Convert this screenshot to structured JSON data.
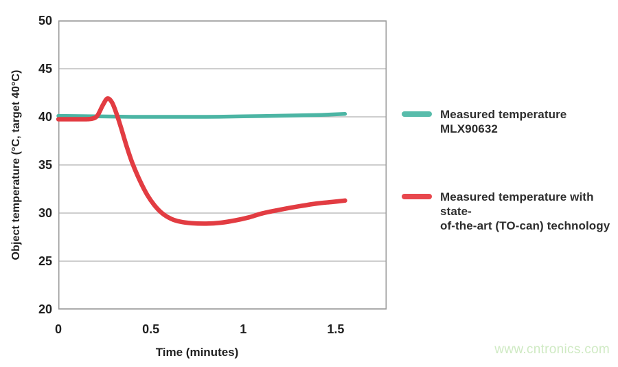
{
  "chart_data": {
    "type": "line",
    "title": "",
    "xlabel": "Time (minutes)",
    "ylabel": "Object temperature (°C, target 40°C)",
    "xlim": [
      0,
      1.775
    ],
    "ylim": [
      20,
      50
    ],
    "xticks": [
      0,
      0.5,
      1,
      1.5
    ],
    "xtick_labels": [
      "0",
      "0.5",
      "1",
      "1.5"
    ],
    "yticks": [
      20,
      25,
      30,
      35,
      40,
      45,
      50
    ],
    "ytick_labels": [
      "20",
      "25",
      "30",
      "35",
      "40",
      "45",
      "50"
    ],
    "grid": "horizontal",
    "grid_color": "#b0b0b0",
    "border_color": "#999999",
    "legend_position": "right",
    "series": [
      {
        "name": "Measured temperature MLX90632",
        "color": "#4cb5a4",
        "stroke_width": 5.5,
        "points": [
          [
            0,
            40.1
          ],
          [
            0.2,
            40.05
          ],
          [
            0.4,
            40.0
          ],
          [
            0.6,
            40.0
          ],
          [
            0.8,
            40.0
          ],
          [
            1.0,
            40.05
          ],
          [
            1.15,
            40.1
          ],
          [
            1.3,
            40.15
          ],
          [
            1.42,
            40.2
          ],
          [
            1.55,
            40.3
          ]
        ]
      },
      {
        "name": "Measured temperature with state-of-the-art (TO-can) technology",
        "color": "#e23c42",
        "stroke_width": 6.5,
        "points": [
          [
            0,
            39.75
          ],
          [
            0.07,
            39.75
          ],
          [
            0.13,
            39.75
          ],
          [
            0.18,
            39.8
          ],
          [
            0.21,
            40.1
          ],
          [
            0.24,
            41.2
          ],
          [
            0.265,
            41.9
          ],
          [
            0.29,
            41.5
          ],
          [
            0.315,
            40.3
          ],
          [
            0.34,
            38.8
          ],
          [
            0.37,
            36.9
          ],
          [
            0.4,
            35.2
          ],
          [
            0.44,
            33.4
          ],
          [
            0.48,
            31.9
          ],
          [
            0.52,
            30.8
          ],
          [
            0.56,
            30.0
          ],
          [
            0.61,
            29.4
          ],
          [
            0.66,
            29.1
          ],
          [
            0.72,
            28.95
          ],
          [
            0.8,
            28.9
          ],
          [
            0.88,
            29.0
          ],
          [
            0.96,
            29.25
          ],
          [
            1.03,
            29.55
          ],
          [
            1.1,
            29.95
          ],
          [
            1.2,
            30.35
          ],
          [
            1.3,
            30.7
          ],
          [
            1.4,
            31.0
          ],
          [
            1.48,
            31.15
          ],
          [
            1.55,
            31.3
          ]
        ]
      }
    ]
  },
  "legend": {
    "items": [
      {
        "color": "#58bcab",
        "lines": [
          "Measured temperature MLX90632"
        ]
      },
      {
        "color": "#e8474d",
        "lines": [
          "Measured temperature with state-",
          "of-the-art (TO-can) technology"
        ]
      }
    ]
  },
  "watermark": {
    "text": "www.cntronics.com",
    "color": "#cfeac3"
  }
}
